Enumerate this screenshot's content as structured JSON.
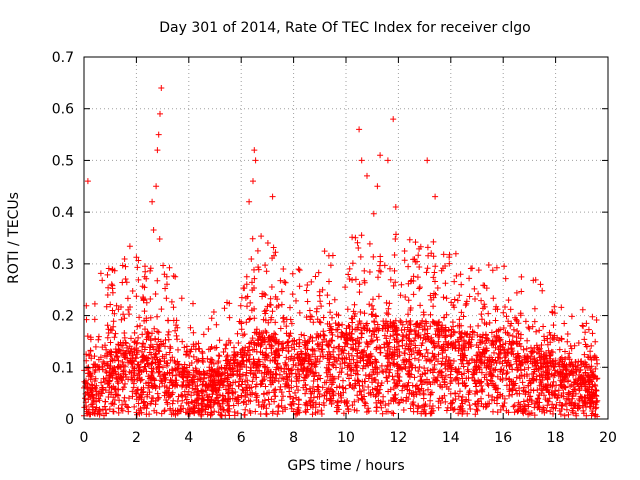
{
  "chart_data": {
    "type": "scatter",
    "title": "Day 301 of 2014, Rate Of TEC Index for receiver clgo",
    "xlabel": "GPS time / hours",
    "ylabel": "ROTI / TECUs",
    "xlim": [
      0,
      20
    ],
    "ylim": [
      0,
      0.7
    ],
    "grid": true,
    "marker": "+",
    "marker_color": "#ff0000",
    "x_ticks": [
      0,
      2,
      4,
      6,
      8,
      10,
      12,
      14,
      16,
      18,
      20
    ],
    "y_ticks": [
      0,
      0.1,
      0.2,
      0.3,
      0.4,
      0.5,
      0.6,
      0.7
    ],
    "x_tick_labels": [
      "0",
      "2",
      "4",
      "6",
      "8",
      "10",
      "12",
      "14",
      "16",
      "18",
      "20"
    ],
    "y_tick_labels": [
      "0",
      "0.1",
      "0.2",
      "0.3",
      "0.4",
      "0.5",
      "0.6",
      "0.7"
    ],
    "series": [
      {
        "name": "ROTI",
        "x_range": [
          0,
          19.6
        ],
        "notable_points": [
          {
            "x": 0.15,
            "y": 0.46
          },
          {
            "x": 2.95,
            "y": 0.64
          },
          {
            "x": 2.9,
            "y": 0.59
          },
          {
            "x": 2.85,
            "y": 0.55
          },
          {
            "x": 2.8,
            "y": 0.52
          },
          {
            "x": 2.75,
            "y": 0.45
          },
          {
            "x": 2.6,
            "y": 0.42
          },
          {
            "x": 6.5,
            "y": 0.52
          },
          {
            "x": 6.55,
            "y": 0.5
          },
          {
            "x": 6.45,
            "y": 0.46
          },
          {
            "x": 6.3,
            "y": 0.42
          },
          {
            "x": 7.2,
            "y": 0.43
          },
          {
            "x": 10.5,
            "y": 0.56
          },
          {
            "x": 10.6,
            "y": 0.5
          },
          {
            "x": 10.8,
            "y": 0.47
          },
          {
            "x": 11.3,
            "y": 0.51
          },
          {
            "x": 11.6,
            "y": 0.5
          },
          {
            "x": 11.8,
            "y": 0.58
          },
          {
            "x": 13.1,
            "y": 0.5
          },
          {
            "x": 13.4,
            "y": 0.43
          },
          {
            "x": 11.2,
            "y": 0.45
          },
          {
            "x": 11.9,
            "y": 0.41
          }
        ],
        "envelope": [
          {
            "x": 0.0,
            "base": 0.05,
            "upper": 0.16
          },
          {
            "x": 0.5,
            "base": 0.06,
            "upper": 0.2
          },
          {
            "x": 1.0,
            "base": 0.07,
            "upper": 0.22
          },
          {
            "x": 1.5,
            "base": 0.08,
            "upper": 0.27
          },
          {
            "x": 2.0,
            "base": 0.08,
            "upper": 0.25
          },
          {
            "x": 2.5,
            "base": 0.09,
            "upper": 0.3
          },
          {
            "x": 3.0,
            "base": 0.08,
            "upper": 0.26
          },
          {
            "x": 3.5,
            "base": 0.06,
            "upper": 0.2
          },
          {
            "x": 4.0,
            "base": 0.05,
            "upper": 0.15
          },
          {
            "x": 4.5,
            "base": 0.05,
            "upper": 0.14
          },
          {
            "x": 5.0,
            "base": 0.05,
            "upper": 0.14
          },
          {
            "x": 5.5,
            "base": 0.06,
            "upper": 0.15
          },
          {
            "x": 6.0,
            "base": 0.07,
            "upper": 0.2
          },
          {
            "x": 6.5,
            "base": 0.09,
            "upper": 0.3
          },
          {
            "x": 7.0,
            "base": 0.09,
            "upper": 0.28
          },
          {
            "x": 7.5,
            "base": 0.08,
            "upper": 0.22
          },
          {
            "x": 8.0,
            "base": 0.08,
            "upper": 0.21
          },
          {
            "x": 8.5,
            "base": 0.08,
            "upper": 0.22
          },
          {
            "x": 9.0,
            "base": 0.09,
            "upper": 0.27
          },
          {
            "x": 9.5,
            "base": 0.09,
            "upper": 0.24
          },
          {
            "x": 10.0,
            "base": 0.09,
            "upper": 0.26
          },
          {
            "x": 10.5,
            "base": 0.1,
            "upper": 0.3
          },
          {
            "x": 11.0,
            "base": 0.1,
            "upper": 0.32
          },
          {
            "x": 11.5,
            "base": 0.1,
            "upper": 0.3
          },
          {
            "x": 12.0,
            "base": 0.1,
            "upper": 0.28
          },
          {
            "x": 12.5,
            "base": 0.1,
            "upper": 0.27
          },
          {
            "x": 13.0,
            "base": 0.1,
            "upper": 0.28
          },
          {
            "x": 13.5,
            "base": 0.1,
            "upper": 0.27
          },
          {
            "x": 14.0,
            "base": 0.09,
            "upper": 0.25
          },
          {
            "x": 14.5,
            "base": 0.09,
            "upper": 0.24
          },
          {
            "x": 15.0,
            "base": 0.09,
            "upper": 0.24
          },
          {
            "x": 15.5,
            "base": 0.09,
            "upper": 0.22
          },
          {
            "x": 16.0,
            "base": 0.08,
            "upper": 0.22
          },
          {
            "x": 16.5,
            "base": 0.08,
            "upper": 0.22
          },
          {
            "x": 17.0,
            "base": 0.07,
            "upper": 0.2
          },
          {
            "x": 17.5,
            "base": 0.07,
            "upper": 0.18
          },
          {
            "x": 18.0,
            "base": 0.07,
            "upper": 0.16
          },
          {
            "x": 18.5,
            "base": 0.06,
            "upper": 0.15
          },
          {
            "x": 19.0,
            "base": 0.06,
            "upper": 0.16
          },
          {
            "x": 19.6,
            "base": 0.05,
            "upper": 0.13
          }
        ]
      }
    ]
  }
}
